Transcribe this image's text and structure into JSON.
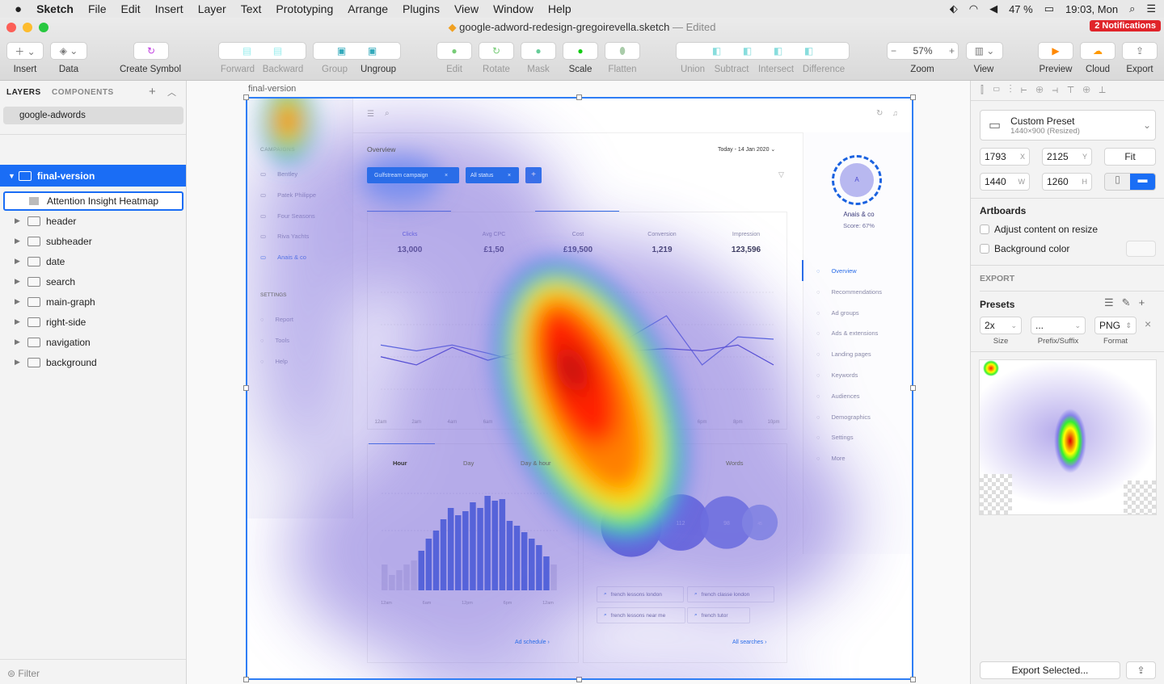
{
  "menubar": {
    "app": "Sketch",
    "items": [
      "File",
      "Edit",
      "Insert",
      "Layer",
      "Text",
      "Prototyping",
      "Arrange",
      "Plugins",
      "View",
      "Window",
      "Help"
    ],
    "battery": "47 %",
    "clock": "19:03, Mon"
  },
  "window": {
    "title": "google-adword-redesign-gregoirevella.sketch",
    "status": "— Edited",
    "notifications": "2 Notifications"
  },
  "toolbar": {
    "insert": "Insert",
    "data": "Data",
    "create_symbol": "Create Symbol",
    "forward": "Forward",
    "backward": "Backward",
    "group": "Group",
    "ungroup": "Ungroup",
    "edit": "Edit",
    "rotate": "Rotate",
    "mask": "Mask",
    "scale": "Scale",
    "flatten": "Flatten",
    "union": "Union",
    "subtract": "Subtract",
    "intersect": "Intersect",
    "difference": "Difference",
    "zoom": "Zoom",
    "zoom_value": "57%",
    "view": "View",
    "preview": "Preview",
    "cloud": "Cloud",
    "export": "Export"
  },
  "layers_panel": {
    "tab_layers": "LAYERS",
    "tab_components": "COMPONENTS",
    "page": "google-adwords",
    "artboard": "final-version",
    "heatmap_layer": "Attention Insight Heatmap",
    "groups": [
      "header",
      "subheader",
      "date",
      "search",
      "main-graph",
      "right-side",
      "navigation",
      "background"
    ],
    "filter": "Filter"
  },
  "canvas": {
    "artboard_label": "final-version"
  },
  "dashboard": {
    "campaigns_title": "CAMPAIGNS",
    "campaigns": [
      "Bentley",
      "Patek Philippe",
      "Four Seasons",
      "Riva Yachts",
      "Anais & co"
    ],
    "settings_title": "SETTINGS",
    "settings": [
      "Report",
      "Tools",
      "Help"
    ],
    "overview": "Overview",
    "date_prefix": "Today -",
    "date": "14 Jan 2020",
    "filters": [
      "Gulfstream campaign",
      "All status"
    ],
    "add": "+",
    "close": "×",
    "stats": [
      {
        "label": "Clicks",
        "value": "13,000"
      },
      {
        "label": "Avg CPC",
        "value": "£1,50"
      },
      {
        "label": "Cost",
        "value": "£19,500"
      },
      {
        "label": "Conversion",
        "value": "1,219"
      },
      {
        "label": "Impression",
        "value": "123,596"
      }
    ],
    "tabs": [
      "Hour",
      "Day",
      "Day & hour"
    ],
    "words_title": "Words",
    "searches": [
      "french lessons london",
      "french classe london",
      "french lessons near me",
      "french tutor"
    ],
    "ad_schedule": "Ad schedule",
    "all_searches": "All searches",
    "profile": {
      "initial": "A",
      "name": "Anais & co",
      "score": "Score: 67%"
    },
    "right_nav": [
      "Overview",
      "Recommendations",
      "Ad groups",
      "Ads & extensions",
      "Landing pages",
      "Keywords",
      "Audiences",
      "Demographics",
      "Settings",
      "More"
    ]
  },
  "chart_data": [
    {
      "type": "line",
      "x": [
        "12am",
        "2am",
        "4am",
        "6am",
        "8am",
        "10am",
        "12pm",
        "2pm",
        "4pm",
        "6pm",
        "8pm",
        "10pm"
      ],
      "series": [
        {
          "values": [
            55,
            50,
            55,
            48,
            40,
            38,
            50,
            62,
            80,
            38,
            62,
            60
          ]
        },
        {
          "values": [
            45,
            38,
            53,
            42,
            50,
            55,
            45,
            50,
            52,
            50,
            55,
            38
          ]
        }
      ]
    },
    {
      "type": "bar",
      "x_ticks": [
        "12am",
        "6am",
        "12pm",
        "6pm",
        "12am"
      ],
      "values": [
        32,
        19,
        25,
        32,
        37,
        49,
        64,
        74,
        88,
        102,
        93,
        98,
        109,
        102,
        117,
        111,
        113,
        86,
        80,
        72,
        64,
        56,
        42,
        32
      ],
      "highlighted": [
        false,
        false,
        false,
        false,
        false,
        true,
        true,
        true,
        true,
        true,
        true,
        true,
        true,
        true,
        true,
        true,
        true,
        true,
        true,
        true,
        true,
        true,
        true,
        false
      ]
    },
    {
      "type": "scatter",
      "labels": [
        "",
        "112",
        "98",
        "45"
      ],
      "values": [
        130,
        112,
        98,
        45
      ]
    }
  ],
  "right_panel": {
    "preset": "Custom Preset",
    "preset_sub": "1440×900 (Resized)",
    "x": "1793",
    "y": "2125",
    "w": "1440",
    "h": "1260",
    "fit": "Fit",
    "artboards": "Artboards",
    "adjust": "Adjust content on resize",
    "bg_color": "Background color",
    "export": "EXPORT",
    "presets": "Presets",
    "size": "2x",
    "prefix": "...",
    "format": "PNG",
    "size_label": "Size",
    "prefix_label": "Prefix/Suffix",
    "format_label": "Format",
    "export_selected": "Export Selected..."
  },
  "colors": {
    "accent": "#1a73f0",
    "selection": "#2f7ef5",
    "notification": "#e0242a"
  }
}
